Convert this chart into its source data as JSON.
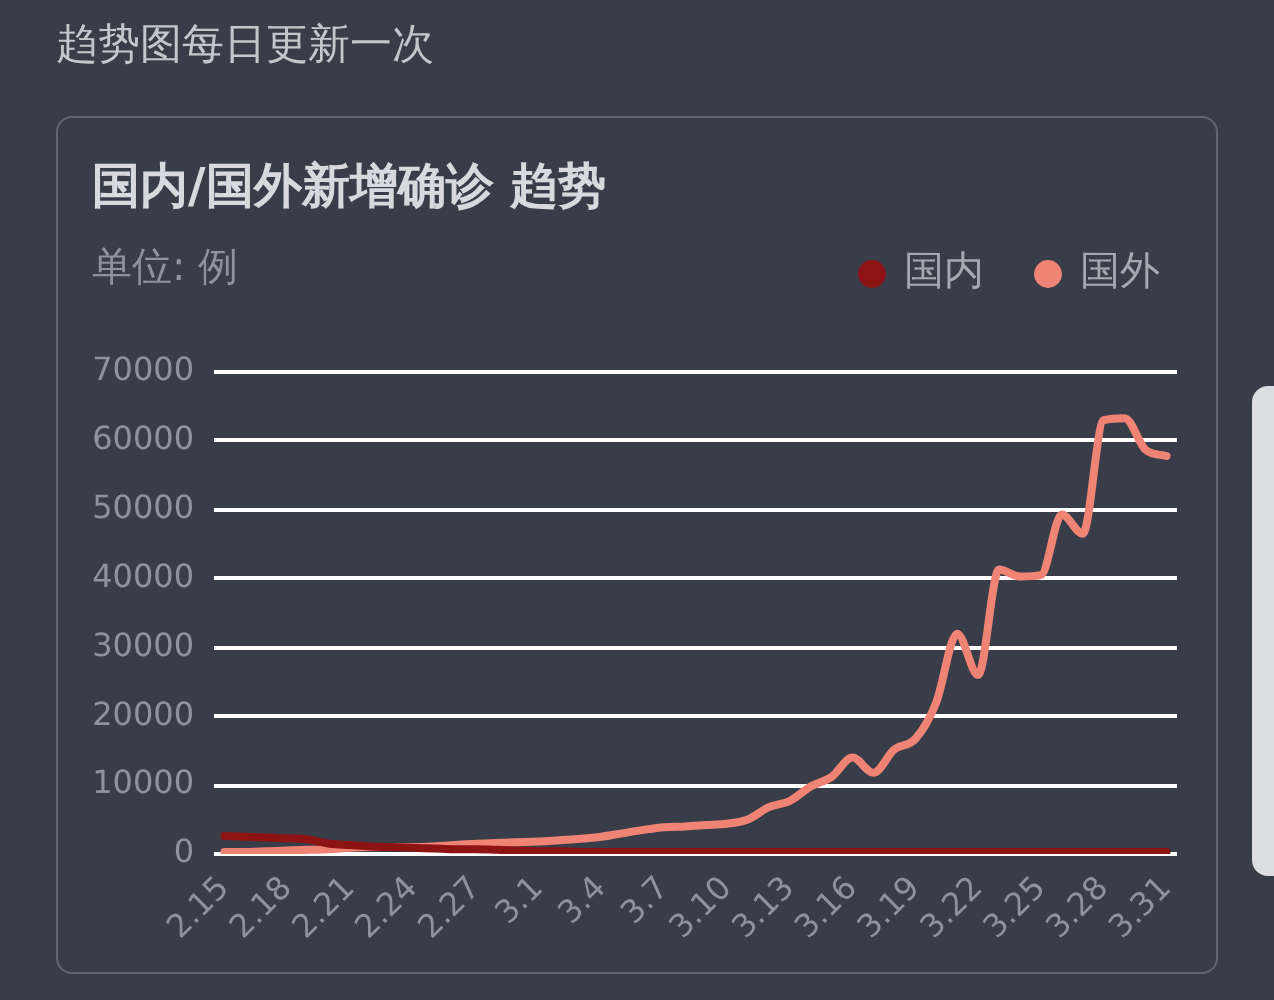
{
  "chart_data": {
    "type": "line",
    "title": "国内/国外新增确诊 趋势",
    "subtitle": "趋势图每日更新一次",
    "ylabel": "单位: 例",
    "categories": [
      "2.15",
      null,
      null,
      "2.18",
      null,
      null,
      "2.21",
      null,
      null,
      "2.24",
      null,
      null,
      "2.27",
      null,
      null,
      "3.1",
      null,
      null,
      "3.4",
      null,
      null,
      "3.7",
      null,
      null,
      "3.10",
      null,
      null,
      "3.13",
      null,
      null,
      "3.16",
      null,
      null,
      "3.19",
      null,
      null,
      "3.22",
      null,
      null,
      "3.25",
      null,
      null,
      "3.28",
      null,
      null,
      "3.31"
    ],
    "series": [
      {
        "name": "国内",
        "color": "#8e1414",
        "values": [
          2600,
          2500,
          2400,
          2300,
          2100,
          1500,
          1300,
          1100,
          1000,
          900,
          800,
          700,
          700,
          600,
          500,
          400,
          400,
          300,
          300,
          300,
          300,
          300,
          300,
          300,
          300,
          300,
          300,
          300,
          300,
          300,
          300,
          300,
          300,
          300,
          300,
          300,
          300,
          300,
          300,
          300,
          300,
          300,
          300,
          300,
          300,
          300
        ]
      },
      {
        "name": "国外",
        "color": "#f08474",
        "values": [
          300,
          300,
          400,
          500,
          600,
          700,
          900,
          1000,
          1000,
          1000,
          1100,
          1300,
          1500,
          1600,
          1700,
          1800,
          2000,
          2200,
          2500,
          3000,
          3500,
          3900,
          4000,
          4200,
          4400,
          5000,
          6800,
          7700,
          9800,
          11200,
          14000,
          11800,
          15200,
          16700,
          22000,
          32000,
          26000,
          41300,
          40300,
          40500,
          49300,
          46500,
          63000,
          63300,
          58700,
          57800
        ]
      }
    ],
    "ylim": [
      0,
      70000
    ],
    "yticks": [
      0,
      10000,
      20000,
      30000,
      40000,
      50000,
      60000,
      70000
    ],
    "grid": "y",
    "legend": "top right",
    "marker": "none"
  }
}
